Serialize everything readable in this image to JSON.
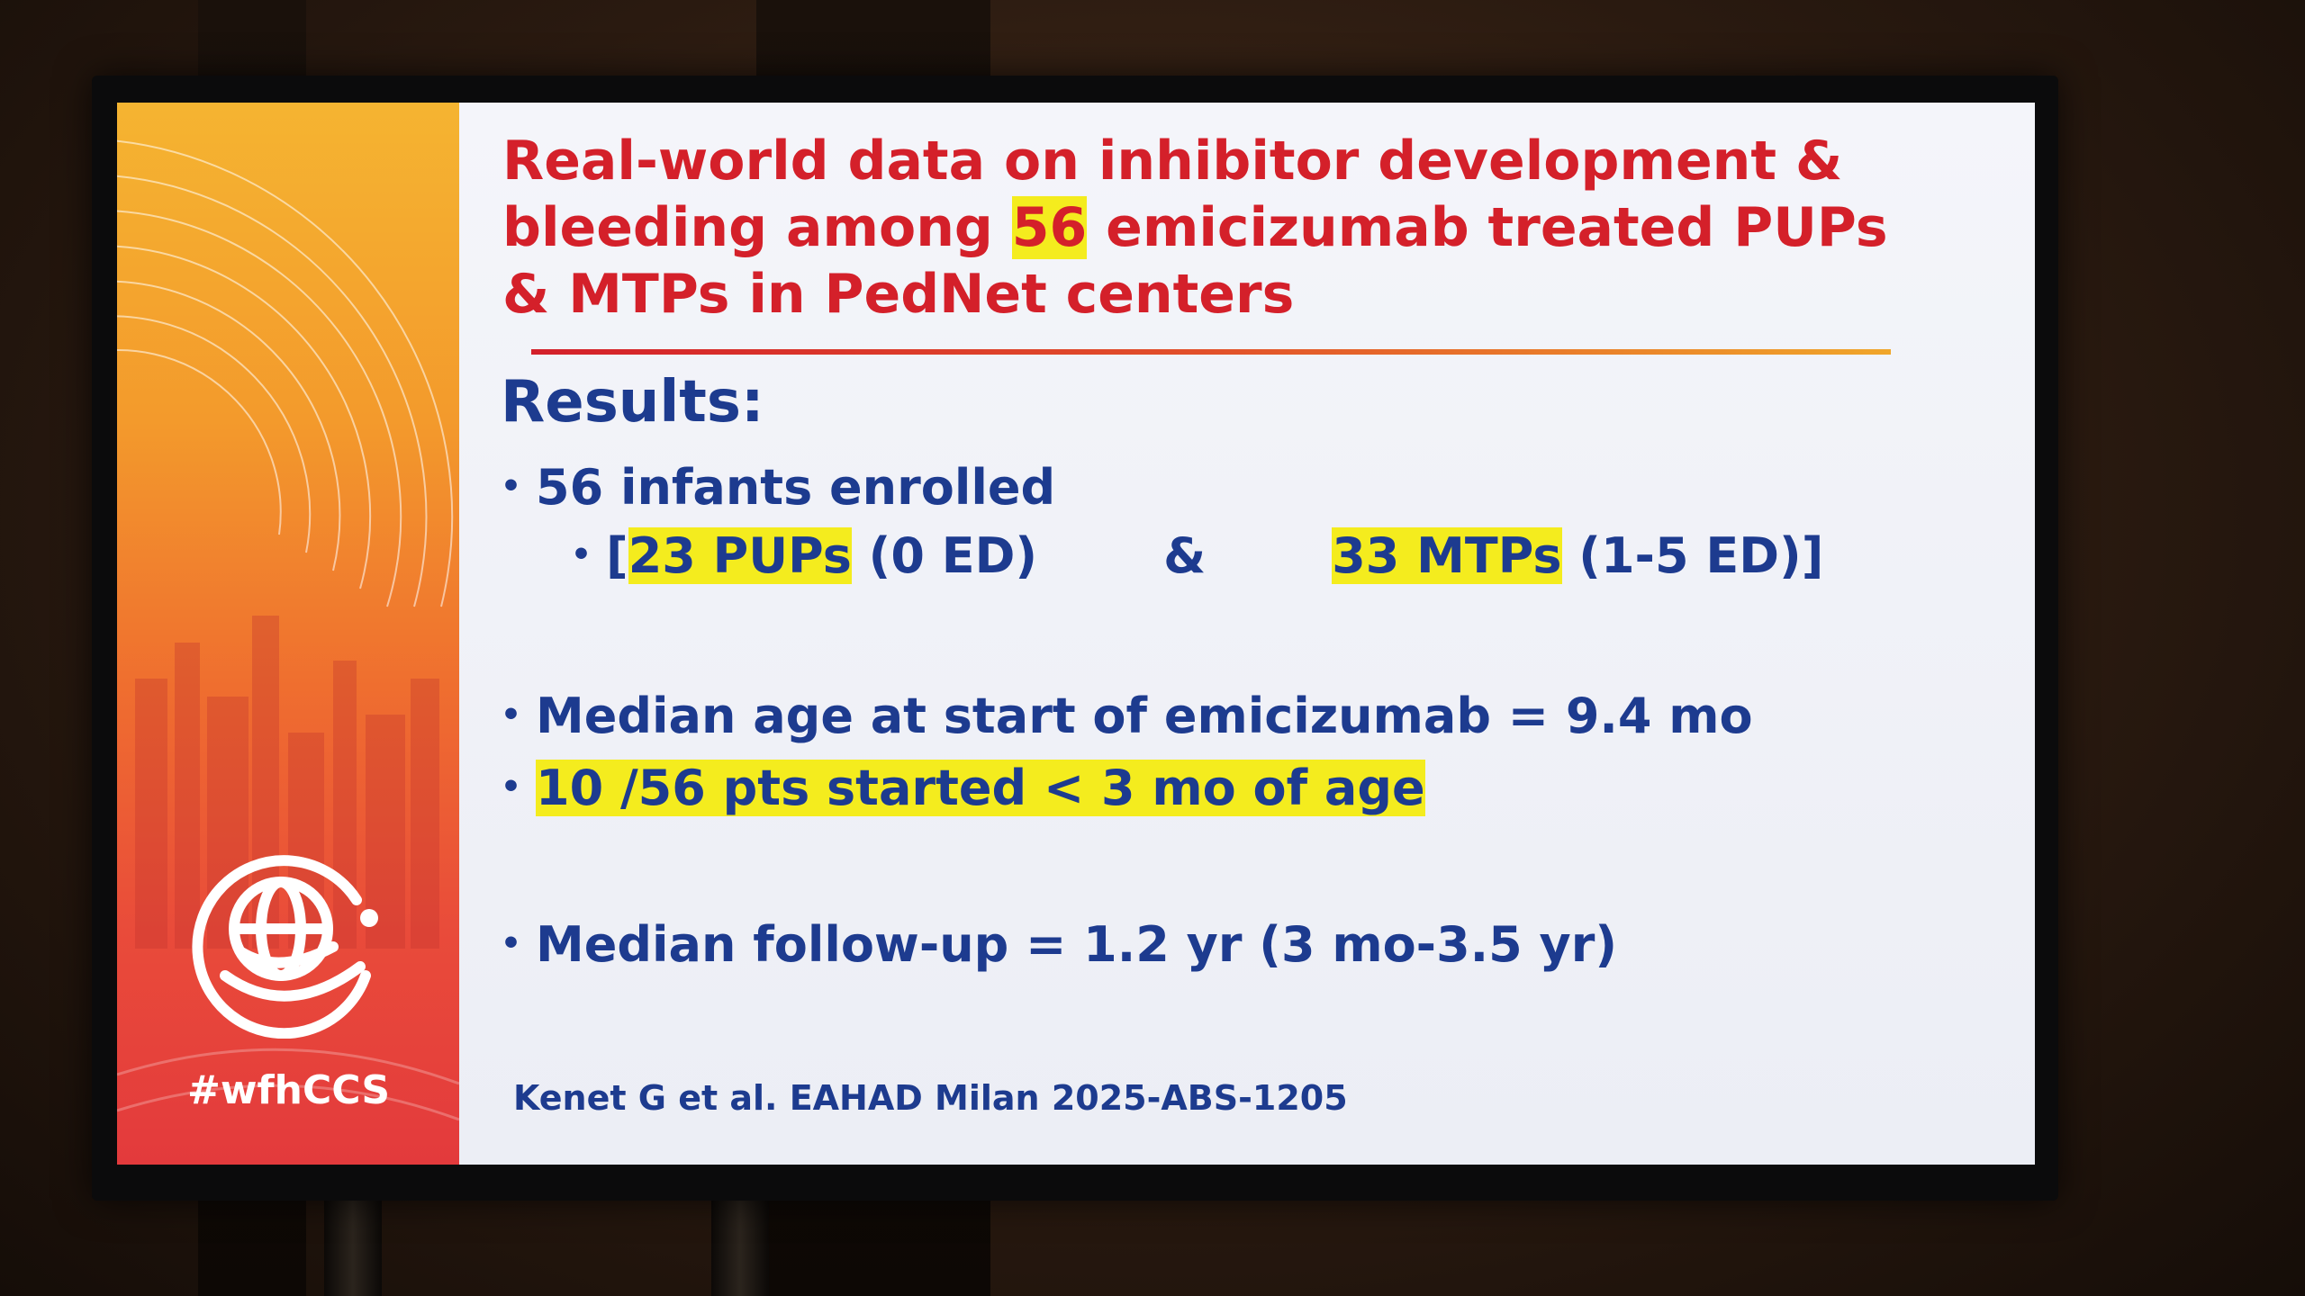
{
  "slide": {
    "title_parts": [
      "Real-world data on inhibitor development &",
      "bleeding among",
      "56",
      "emicizumab treated PUPs",
      "& MTPs in PedNet centers"
    ],
    "results_heading": "Results:",
    "bullet1": "56 infants enrolled",
    "sub_bullet": {
      "open": "[",
      "pups_highlight": "23 PUPs",
      "pups_rest": " (0 ED)",
      "amp": "&",
      "mtps_highlight": "33 MTPs",
      "mtps_rest": " (1-5 ED)]"
    },
    "bullet2": "Median age at start of emicizumab = 9.4 mo",
    "bullet3": "10 /56 pts started < 3 mo of age",
    "bullet4": "Median follow-up = 1.2 yr (3 mo-3.5 yr)",
    "citation": "Kenet G et al. EAHAD Milan 2025-ABS-1205",
    "hashtag": "#wfhCCS",
    "bullet_symbol": "•"
  },
  "logo": {
    "icon": "globe-hand-icon",
    "color": "#ffffff"
  },
  "colors": {
    "title_red": "#d4202a",
    "text_blue": "#1d3b8f",
    "highlight_yellow": "#f4ec1e",
    "panel_orange": "#f39a2c"
  }
}
